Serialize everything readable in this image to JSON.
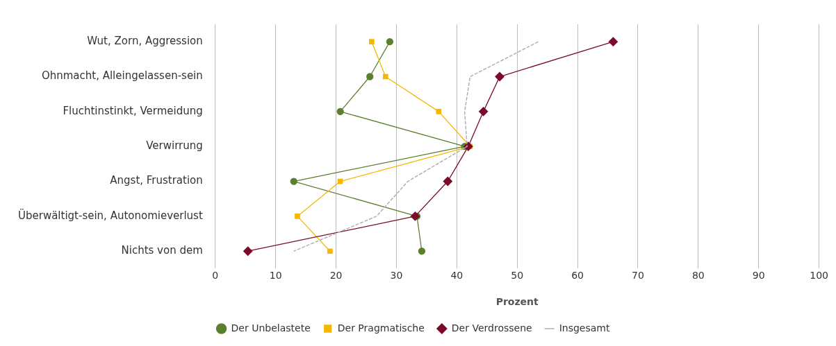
{
  "chart_data": {
    "type": "line",
    "orientation": "horizontal",
    "xlabel": "Prozent",
    "categories": [
      "Wut, Zorn, Aggression",
      "Ohnmacht, Alleingelassen-sein",
      "Fluchtinstinkt, Vermeidung",
      "Verwirrung",
      "Angst, Frustration",
      "Überwältigt-sein, Autonomieverlust",
      "Nichts von dem"
    ],
    "series": [
      {
        "name": "Der Unbelastete",
        "color": "#5b7f2e",
        "marker": "circle",
        "values": [
          28.9,
          25.6,
          20.7,
          41.3,
          13.0,
          33.4,
          34.2
        ]
      },
      {
        "name": "Der Pragmatische",
        "color": "#f5b800",
        "marker": "square",
        "values": [
          25.9,
          28.2,
          37.0,
          42.2,
          20.7,
          13.6,
          19.0
        ]
      },
      {
        "name": "Der Verdrossene",
        "color": "#7a0a2a",
        "marker": "diamond",
        "values": [
          65.9,
          47.1,
          44.4,
          41.9,
          38.5,
          33.1,
          5.4
        ]
      },
      {
        "name": "Insgesamt",
        "color": "#b0b0b0",
        "marker": "none",
        "line_style": "dashed",
        "values": [
          53.5,
          42.2,
          41.3,
          41.7,
          31.9,
          26.7,
          13.0
        ]
      }
    ],
    "xlim": [
      0,
      100
    ],
    "xticks": [
      0,
      10,
      20,
      30,
      40,
      50,
      60,
      70,
      80,
      90,
      100
    ],
    "grid": "x",
    "legend": "bottom"
  }
}
